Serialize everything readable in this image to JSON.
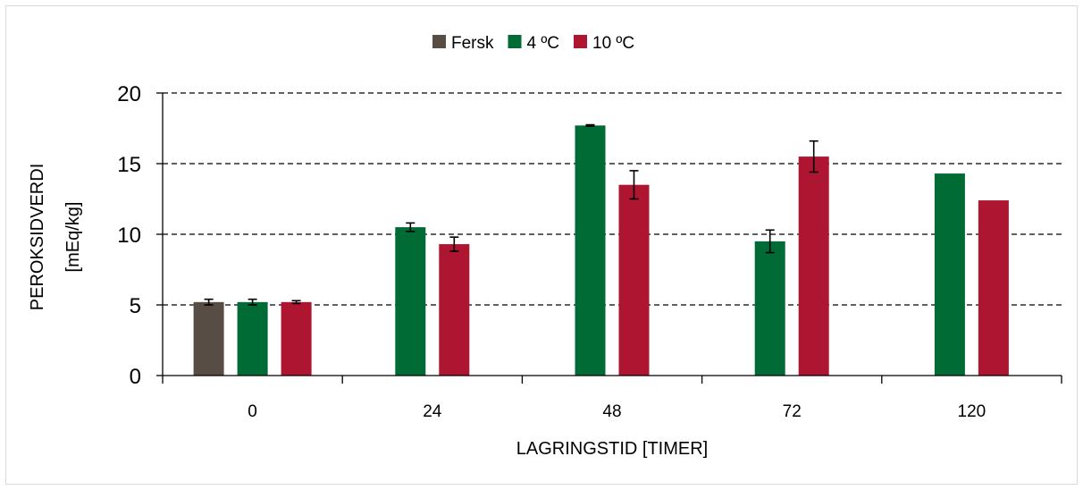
{
  "chart_data": {
    "type": "bar",
    "categories": [
      "0",
      "24",
      "48",
      "72",
      "120"
    ],
    "xlabel": "LAGRINGSTID [TIMER]",
    "ylabel_line1": "PEROKSIDVERDI",
    "ylabel_line2": "[mEq/kg]",
    "ylim": [
      0,
      20
    ],
    "yticks": [
      "0",
      "5",
      "10",
      "15",
      "20"
    ],
    "grid": true,
    "legend_position": "top-center",
    "series": [
      {
        "name": "Fersk",
        "color": "#584d45",
        "values": [
          5.2,
          null,
          null,
          null,
          null
        ],
        "errors": [
          0.2,
          null,
          null,
          null,
          null
        ]
      },
      {
        "name": "4 ºC",
        "color": "#006b35",
        "values": [
          5.2,
          10.5,
          17.7,
          9.5,
          14.3
        ],
        "errors": [
          0.2,
          0.3,
          0.05,
          0.8,
          0
        ]
      },
      {
        "name": "10 ºC",
        "color": "#ad1530",
        "values": [
          5.2,
          9.3,
          13.5,
          15.5,
          12.4
        ],
        "errors": [
          0.1,
          0.5,
          1.0,
          1.1,
          0
        ]
      }
    ]
  }
}
